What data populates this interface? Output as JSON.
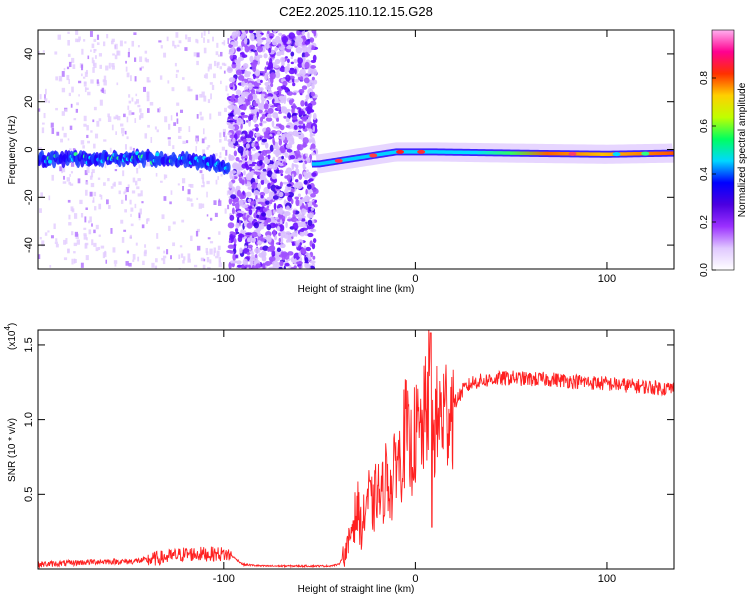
{
  "title": "C2E2.2025.110.12.15.G28",
  "chart_data": [
    {
      "type": "heatmap",
      "xlabel": "Height of straight line (km)",
      "ylabel": "Frequency (Hz)",
      "xlim": [
        -197,
        135
      ],
      "ylim": [
        -50,
        50
      ],
      "xticks": [
        -100,
        0,
        100
      ],
      "xtick_labels": [
        "-100",
        "0",
        "100"
      ],
      "yticks": [
        -40,
        -20,
        0,
        20,
        40
      ],
      "ytick_labels": [
        "-40",
        "-20",
        "0",
        "20",
        "40"
      ],
      "colorbar": {
        "label": "Normalized spectral amplitude",
        "range": [
          0,
          1
        ],
        "ticks": [
          0,
          0.2,
          0.4,
          0.6,
          0.8
        ],
        "tick_labels": [
          "0.0",
          "0.2",
          "0.4",
          "0.6",
          "0.8"
        ],
        "colors": [
          "#ffffff",
          "#e0c8ff",
          "#9b30ff",
          "#4b00e0",
          "#0000ff",
          "#00d8ff",
          "#00ff60",
          "#c0ff00",
          "#ffd000",
          "#ff3000",
          "#ff0090",
          "#ffb0f0"
        ]
      },
      "features": {
        "ridge_frequency_hz": [
          {
            "x": -197,
            "y": -4
          },
          {
            "x": -170,
            "y": -3.5
          },
          {
            "x": -140,
            "y": -3.5
          },
          {
            "x": -110,
            "y": -5
          },
          {
            "x": -98,
            "y": -7
          },
          {
            "x": -50,
            "y": -6
          },
          {
            "x": -30,
            "y": -3.5
          },
          {
            "x": -10,
            "y": -1
          },
          {
            "x": 10,
            "y": -1
          },
          {
            "x": 50,
            "y": -1.5
          },
          {
            "x": 100,
            "y": -2
          },
          {
            "x": 135,
            "y": -1.5
          }
        ],
        "noise_band_x": [
          -97,
          -52
        ]
      },
      "grid": false,
      "legend": "none"
    },
    {
      "type": "line",
      "xlabel": "Height of straight line (km)",
      "ylabel": "SNR (10 * v/v)",
      "y_multiplier": "(x10",
      "y_multiplier_exp": "4",
      "y_multiplier_close": ")",
      "xlim": [
        -197,
        135
      ],
      "ylim": [
        0,
        1.6
      ],
      "xticks": [
        -100,
        0,
        100
      ],
      "xtick_labels": [
        "-100",
        "0",
        "100"
      ],
      "yticks": [
        0.5,
        1.0,
        1.5
      ],
      "ytick_labels": [
        "0.5",
        "1.0",
        "1.5"
      ],
      "series": [
        {
          "color": "#ff2020",
          "x": [
            -197,
            -180,
            -165,
            -150,
            -140,
            -130,
            -120,
            -110,
            -100,
            -96,
            -90,
            -80,
            -70,
            -60,
            -55,
            -50,
            -45,
            -40,
            -37,
            -35,
            -33,
            -30,
            -28,
            -25,
            -22,
            -20,
            -18,
            -15,
            -12,
            -10,
            -8,
            -5,
            -3,
            0,
            3,
            5,
            7,
            8,
            9,
            10,
            12,
            15,
            20,
            25,
            30,
            40,
            50,
            60,
            70,
            80,
            90,
            100,
            110,
            120,
            130,
            135
          ],
          "y": [
            0.03,
            0.04,
            0.05,
            0.05,
            0.06,
            0.08,
            0.1,
            0.1,
            0.1,
            0.09,
            0.03,
            0.02,
            0.02,
            0.02,
            0.02,
            0.02,
            0.02,
            0.03,
            0.1,
            0.15,
            0.3,
            0.4,
            0.25,
            0.5,
            0.4,
            0.55,
            0.45,
            0.65,
            0.5,
            0.8,
            0.7,
            0.95,
            0.75,
            0.9,
            0.9,
            1.0,
            1.2,
            1.55,
            0.9,
            0.95,
            1.0,
            1.05,
            1.1,
            1.2,
            1.25,
            1.27,
            1.28,
            1.27,
            1.27,
            1.26,
            1.25,
            1.24,
            1.23,
            1.22,
            1.21,
            1.21
          ]
        }
      ],
      "grid": false,
      "legend": "none"
    }
  ]
}
